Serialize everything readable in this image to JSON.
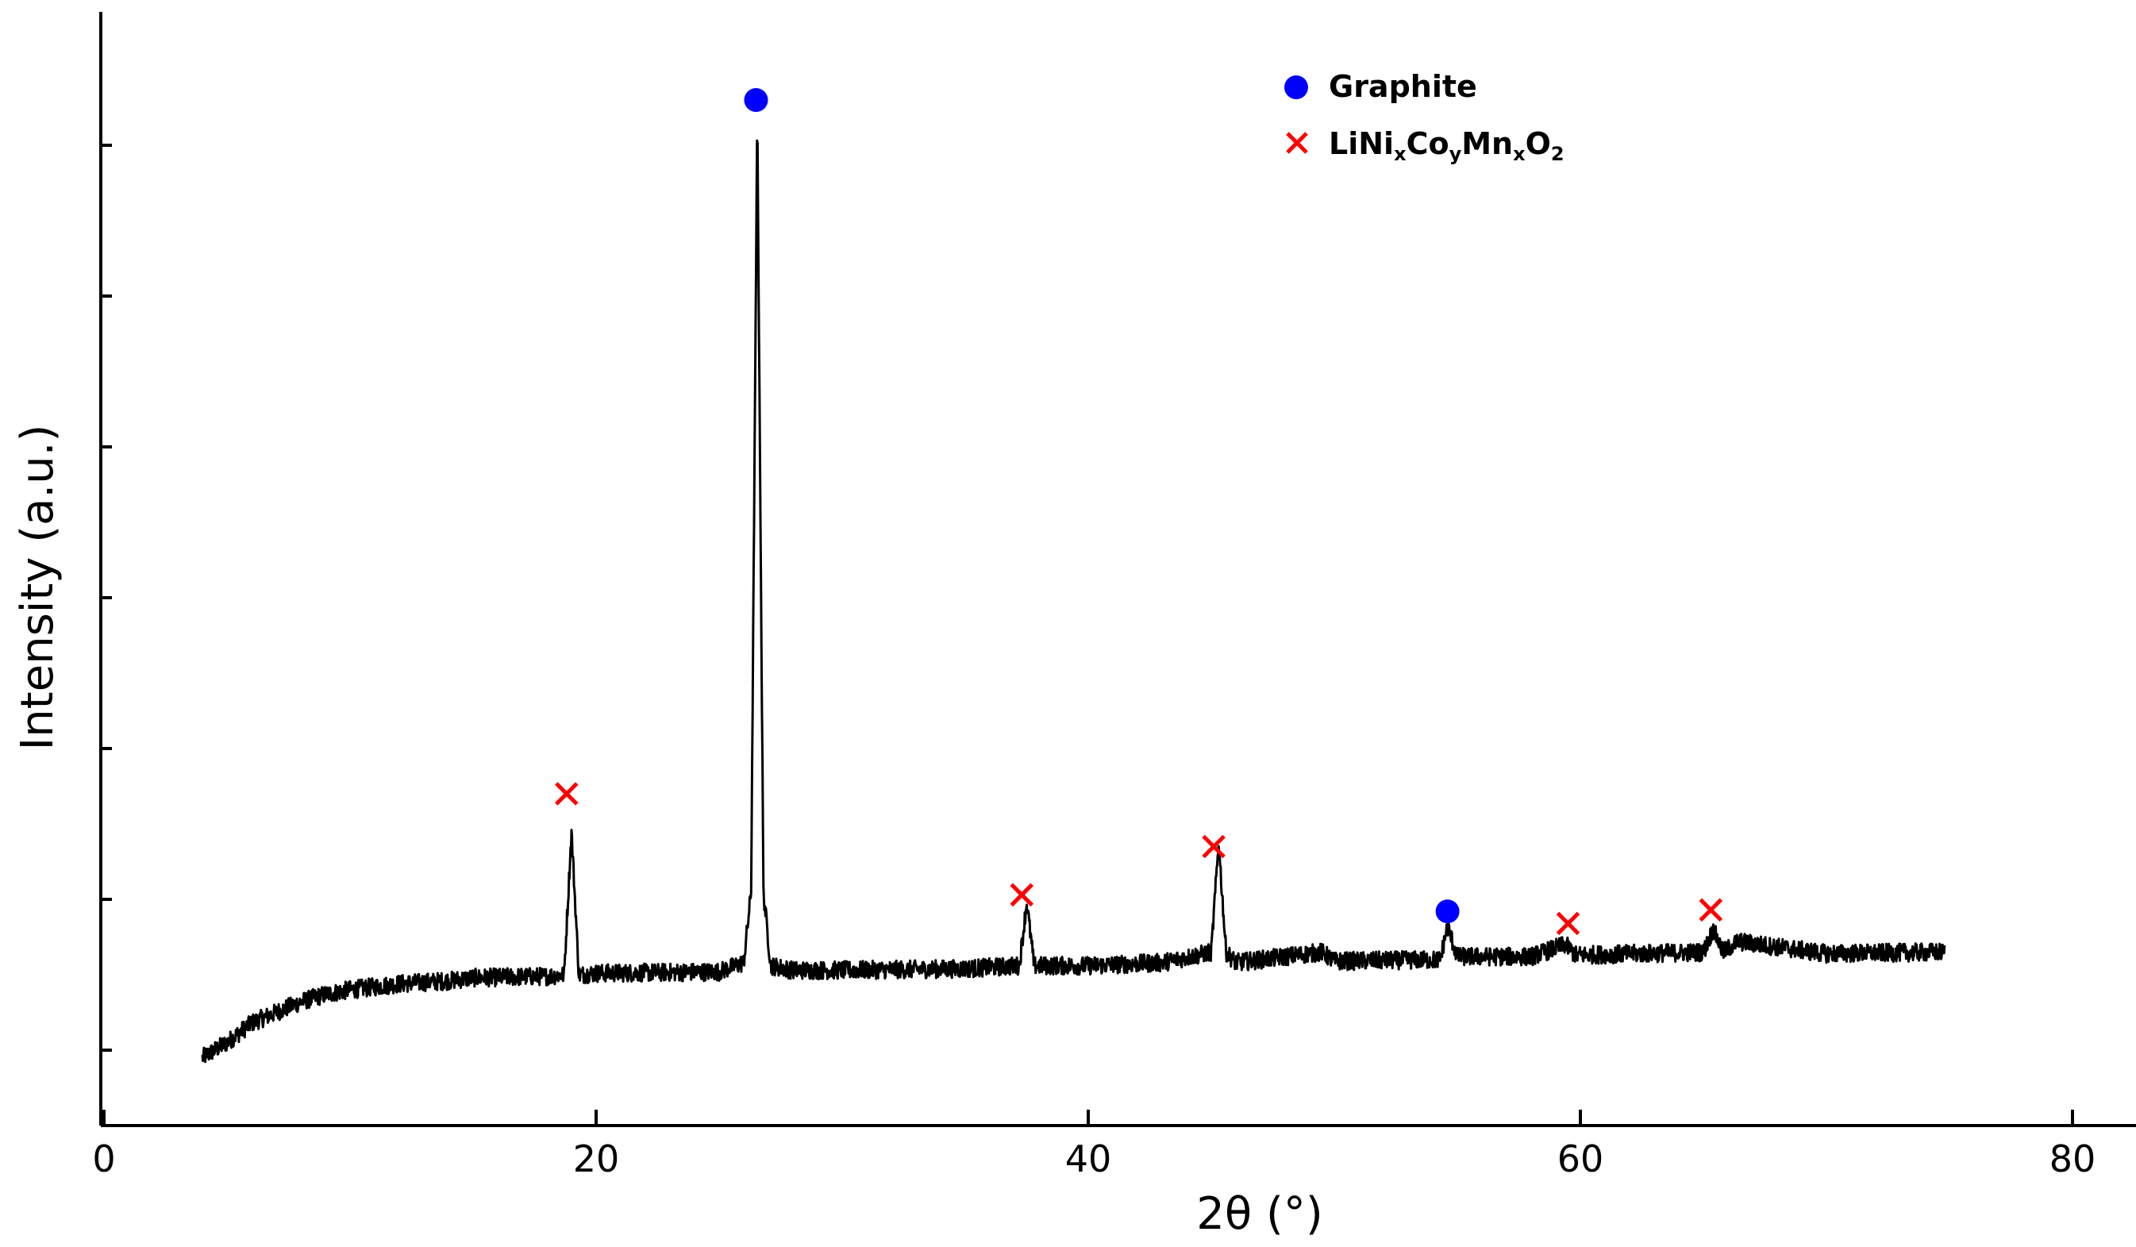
{
  "chart_data": {
    "type": "line",
    "title": "",
    "xlabel": "2θ (°)",
    "ylabel": "Intensity (a.u.)",
    "xlim": [
      0,
      80
    ],
    "ylim": [
      0,
      7.4
    ],
    "xticks": [
      "0",
      "20",
      "40",
      "60",
      "80"
    ],
    "yticks_labeled": false,
    "grid": false,
    "legend_position": "top-right",
    "legend": [
      {
        "label": "Graphite",
        "marker": "circle",
        "color": "#0000ff"
      },
      {
        "label": "LiNi",
        "sub1": "x",
        "mid1": "Co",
        "sub2": "y",
        "mid2": "Mn",
        "sub3": "x",
        "mid3": "O",
        "sub4": "2",
        "marker": "x",
        "color": "#ff0000"
      }
    ],
    "series": [
      {
        "color": "#000000",
        "x": [
          4.0,
          5.0,
          6.0,
          7.0,
          8.0,
          9.0,
          10.0,
          12.0,
          14.0,
          15.0,
          18.0,
          18.7,
          19.0,
          19.3,
          20.0,
          25.0,
          26.0,
          26.3,
          26.55,
          26.8,
          27.1,
          28.0,
          30.0,
          35.0,
          37.2,
          37.5,
          37.8,
          40.0,
          43.0,
          45.0,
          45.3,
          45.6,
          46.0,
          49.5,
          50.0,
          54.3,
          54.6,
          55.0,
          58.0,
          59.4,
          59.8,
          65.0,
          65.4,
          65.8,
          66.4,
          70.0,
          74.8
        ],
        "y": [
          0.45,
          0.55,
          0.68,
          0.75,
          0.82,
          0.87,
          0.9,
          0.94,
          0.96,
          0.98,
          0.99,
          1.0,
          1.95,
          1.0,
          1.01,
          1.02,
          1.08,
          1.55,
          6.7,
          1.55,
          1.06,
          1.03,
          1.03,
          1.04,
          1.06,
          1.48,
          1.06,
          1.06,
          1.08,
          1.15,
          1.88,
          1.15,
          1.08,
          1.15,
          1.09,
          1.1,
          1.32,
          1.12,
          1.12,
          1.2,
          1.13,
          1.15,
          1.3,
          1.15,
          1.22,
          1.14,
          1.15
        ]
      }
    ],
    "markers": [
      {
        "phase": "Graphite",
        "x": 26.5,
        "y": 6.8
      },
      {
        "phase": "LiNixCoyMnxO2",
        "x": 18.8,
        "y": 2.2
      },
      {
        "phase": "LiNixCoyMnxO2",
        "x": 37.3,
        "y": 1.53
      },
      {
        "phase": "LiNixCoyMnxO2",
        "x": 45.1,
        "y": 1.85
      },
      {
        "phase": "Graphite",
        "x": 54.6,
        "y": 1.42
      },
      {
        "phase": "LiNixCoyMnxO2",
        "x": 59.5,
        "y": 1.34
      },
      {
        "phase": "LiNixCoyMnxO2",
        "x": 65.3,
        "y": 1.43
      }
    ],
    "colors": {
      "graphite": "#0000ff",
      "nmc": "#ff0000",
      "line": "#000000"
    }
  }
}
